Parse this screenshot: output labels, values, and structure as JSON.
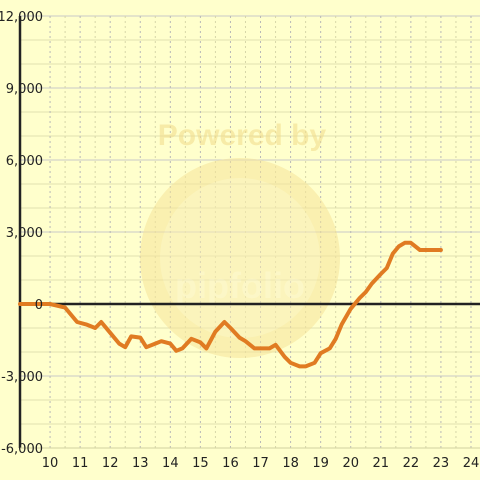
{
  "watermark": {
    "line1": "Powered by",
    "line2": "pipfolio"
  },
  "colors": {
    "background": "#ffffcc",
    "grid_major": "#c9c9c9",
    "grid_minor": "#d6d6a8",
    "axis": "#222222",
    "series": "#e07b22",
    "watermark": "#f6e49a"
  },
  "chart_data": {
    "type": "line",
    "title": "",
    "xlabel": "",
    "ylabel": "",
    "xlim": [
      9.0,
      24.3
    ],
    "ylim": [
      -6000,
      12000
    ],
    "x_ticks": [
      10,
      11,
      12,
      13,
      14,
      15,
      16,
      17,
      18,
      19,
      20,
      21,
      22,
      23,
      24
    ],
    "x_tick_labels": [
      "10",
      "11",
      "12",
      "13",
      "14",
      "15",
      "16",
      "17",
      "18",
      "19",
      "20",
      "21",
      "22",
      "23",
      "24"
    ],
    "y_ticks": [
      12000,
      9000,
      6000,
      3000,
      0,
      -3000,
      -6000
    ],
    "y_tick_labels": [
      "12,000",
      "9,000",
      "6,000",
      "3,000",
      "0",
      "-3,000",
      "-6,000"
    ],
    "grid": true,
    "legend": "none",
    "series": [
      {
        "color": "#e07b22",
        "x": [
          9.0,
          9.5,
          10.0,
          10.5,
          10.9,
          11.2,
          11.5,
          11.7,
          12.0,
          12.3,
          12.5,
          12.7,
          13.0,
          13.2,
          13.5,
          13.7,
          14.0,
          14.2,
          14.4,
          14.7,
          15.0,
          15.2,
          15.5,
          15.8,
          16.0,
          16.3,
          16.5,
          16.8,
          17.0,
          17.3,
          17.5,
          17.8,
          18.0,
          18.3,
          18.5,
          18.8,
          19.0,
          19.3,
          19.5,
          19.7,
          20.0,
          20.3,
          20.5,
          20.7,
          21.0,
          21.2,
          21.4,
          21.6,
          21.8,
          22.0,
          22.3,
          22.5,
          22.8,
          23.0
        ],
        "values": [
          0,
          0,
          0,
          -150,
          -750,
          -850,
          -1000,
          -750,
          -1200,
          -1650,
          -1800,
          -1350,
          -1400,
          -1800,
          -1650,
          -1550,
          -1650,
          -1950,
          -1850,
          -1450,
          -1600,
          -1850,
          -1150,
          -750,
          -1000,
          -1400,
          -1550,
          -1850,
          -1850,
          -1850,
          -1700,
          -2200,
          -2450,
          -2600,
          -2600,
          -2450,
          -2050,
          -1850,
          -1450,
          -850,
          -200,
          250,
          500,
          850,
          1250,
          1500,
          2100,
          2400,
          2550,
          2550,
          2250,
          2250,
          2250,
          2250
        ]
      }
    ]
  }
}
